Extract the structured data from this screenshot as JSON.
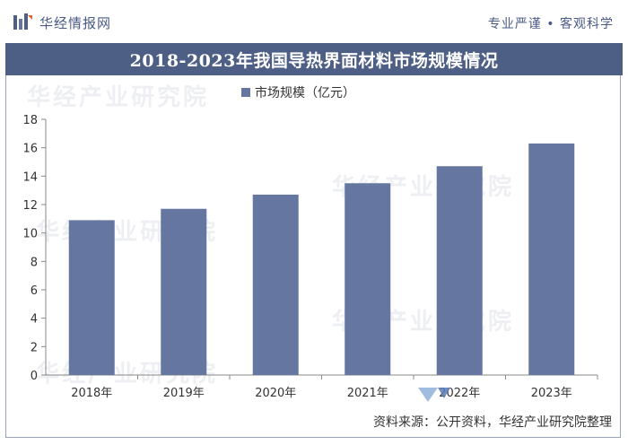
{
  "header": {
    "brand": "华经情报网",
    "slogan": "专业严谨 • 客观科学"
  },
  "title": "2018-2023年我国导热界面材料市场规模情况",
  "watermark": "华经产业研究院",
  "source": "资料来源：公开资料，华经产业研究院整理",
  "colors": {
    "bar": "#6577a0",
    "title_bar": "#4e5f86",
    "text": "#333333"
  },
  "chart_data": {
    "type": "bar",
    "categories": [
      "2018年",
      "2019年",
      "2020年",
      "2021年",
      "2022年",
      "2023年"
    ],
    "series": [
      {
        "name": "市场规模（亿元）",
        "values": [
          10.9,
          11.7,
          12.7,
          13.5,
          14.7,
          16.3
        ]
      }
    ],
    "ylim": [
      0,
      18
    ],
    "yticks": [
      0,
      2,
      4,
      6,
      8,
      10,
      12,
      14,
      16,
      18
    ],
    "legend": "top-center",
    "grid": false
  }
}
